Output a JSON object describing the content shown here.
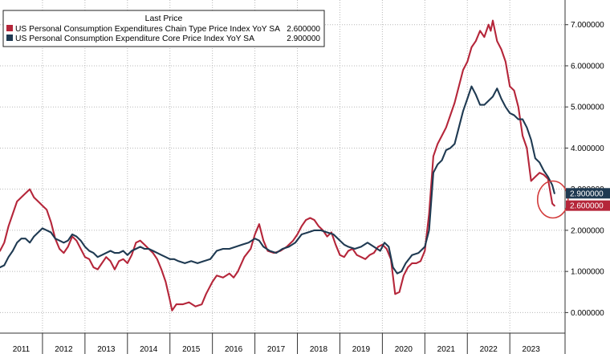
{
  "chart_data": {
    "type": "line",
    "legend": {
      "title": "Last Price",
      "placement": "top-left",
      "entries": [
        {
          "name": "US Personal Consumption Expenditures Chain Type Price Index YoY SA",
          "value": "2.600000"
        },
        {
          "name": "US Personal Consumption Expenditure Core Price Index YoY SA",
          "value": "2.900000"
        }
      ]
    },
    "x_axis": {
      "labels": [
        "2011",
        "2012",
        "2013",
        "2014",
        "2015",
        "2016",
        "2017",
        "2018",
        "2019",
        "2020",
        "2021",
        "2022",
        "2023"
      ],
      "range": [
        2011,
        2024.3
      ]
    },
    "y_axis": {
      "position": "right",
      "range": [
        -0.5,
        7.6
      ],
      "ticks": [
        0,
        1,
        2,
        3,
        4,
        5,
        6,
        7
      ],
      "tick_labels": [
        "0.000000",
        "1.000000",
        "2.000000",
        "3.000000",
        "4.000000",
        "5.000000",
        "6.000000",
        "7.000000"
      ]
    },
    "grid": true,
    "last_value_labels": [
      {
        "series": 1,
        "text": "2.900000",
        "value": 2.9
      },
      {
        "series": 0,
        "text": "2.600000",
        "value": 2.6
      }
    ],
    "annotation": {
      "type": "circle",
      "x": 2024.05,
      "y": 2.75
    },
    "series": [
      {
        "name": "US Personal Consumption Expenditures Chain Type Price Index YoY SA",
        "color": "#b5263a",
        "points": [
          [
            2011.0,
            1.5
          ],
          [
            2011.1,
            1.7
          ],
          [
            2011.2,
            2.1
          ],
          [
            2011.3,
            2.4
          ],
          [
            2011.4,
            2.7
          ],
          [
            2011.5,
            2.8
          ],
          [
            2011.6,
            2.9
          ],
          [
            2011.7,
            3.0
          ],
          [
            2011.8,
            2.8
          ],
          [
            2011.9,
            2.7
          ],
          [
            2012.0,
            2.6
          ],
          [
            2012.1,
            2.5
          ],
          [
            2012.2,
            2.2
          ],
          [
            2012.3,
            1.8
          ],
          [
            2012.4,
            1.55
          ],
          [
            2012.5,
            1.45
          ],
          [
            2012.6,
            1.6
          ],
          [
            2012.7,
            1.85
          ],
          [
            2012.8,
            1.75
          ],
          [
            2012.9,
            1.55
          ],
          [
            2013.0,
            1.35
          ],
          [
            2013.1,
            1.3
          ],
          [
            2013.2,
            1.1
          ],
          [
            2013.3,
            1.05
          ],
          [
            2013.4,
            1.2
          ],
          [
            2013.5,
            1.35
          ],
          [
            2013.6,
            1.25
          ],
          [
            2013.7,
            1.05
          ],
          [
            2013.8,
            1.25
          ],
          [
            2013.9,
            1.3
          ],
          [
            2014.0,
            1.2
          ],
          [
            2014.1,
            1.4
          ],
          [
            2014.2,
            1.7
          ],
          [
            2014.3,
            1.75
          ],
          [
            2014.4,
            1.65
          ],
          [
            2014.5,
            1.55
          ],
          [
            2014.6,
            1.45
          ],
          [
            2014.7,
            1.3
          ],
          [
            2014.8,
            1.05
          ],
          [
            2014.9,
            0.75
          ],
          [
            2015.0,
            0.3
          ],
          [
            2015.05,
            0.05
          ],
          [
            2015.15,
            0.2
          ],
          [
            2015.3,
            0.2
          ],
          [
            2015.45,
            0.25
          ],
          [
            2015.6,
            0.15
          ],
          [
            2015.75,
            0.2
          ],
          [
            2015.85,
            0.45
          ],
          [
            2016.0,
            0.75
          ],
          [
            2016.1,
            0.9
          ],
          [
            2016.25,
            0.85
          ],
          [
            2016.4,
            0.95
          ],
          [
            2016.5,
            0.85
          ],
          [
            2016.6,
            1.0
          ],
          [
            2016.75,
            1.35
          ],
          [
            2016.9,
            1.55
          ],
          [
            2017.0,
            1.9
          ],
          [
            2017.1,
            2.15
          ],
          [
            2017.2,
            1.75
          ],
          [
            2017.3,
            1.5
          ],
          [
            2017.45,
            1.45
          ],
          [
            2017.6,
            1.5
          ],
          [
            2017.75,
            1.6
          ],
          [
            2017.9,
            1.75
          ],
          [
            2018.0,
            1.9
          ],
          [
            2018.1,
            2.1
          ],
          [
            2018.2,
            2.25
          ],
          [
            2018.3,
            2.3
          ],
          [
            2018.4,
            2.25
          ],
          [
            2018.5,
            2.1
          ],
          [
            2018.6,
            2.0
          ],
          [
            2018.7,
            1.85
          ],
          [
            2018.8,
            1.95
          ],
          [
            2018.9,
            1.65
          ],
          [
            2019.0,
            1.4
          ],
          [
            2019.1,
            1.35
          ],
          [
            2019.2,
            1.5
          ],
          [
            2019.3,
            1.55
          ],
          [
            2019.4,
            1.4
          ],
          [
            2019.5,
            1.35
          ],
          [
            2019.6,
            1.3
          ],
          [
            2019.7,
            1.4
          ],
          [
            2019.8,
            1.45
          ],
          [
            2019.9,
            1.6
          ],
          [
            2020.0,
            1.65
          ],
          [
            2020.1,
            1.55
          ],
          [
            2020.2,
            1.3
          ],
          [
            2020.3,
            0.45
          ],
          [
            2020.4,
            0.5
          ],
          [
            2020.5,
            0.9
          ],
          [
            2020.6,
            1.1
          ],
          [
            2020.7,
            1.2
          ],
          [
            2020.8,
            1.2
          ],
          [
            2020.9,
            1.25
          ],
          [
            2021.0,
            1.5
          ],
          [
            2021.1,
            2.4
          ],
          [
            2021.2,
            3.8
          ],
          [
            2021.3,
            4.1
          ],
          [
            2021.4,
            4.3
          ],
          [
            2021.5,
            4.5
          ],
          [
            2021.6,
            4.8
          ],
          [
            2021.7,
            5.1
          ],
          [
            2021.8,
            5.5
          ],
          [
            2021.9,
            5.9
          ],
          [
            2022.0,
            6.1
          ],
          [
            2022.1,
            6.45
          ],
          [
            2022.2,
            6.6
          ],
          [
            2022.3,
            6.85
          ],
          [
            2022.4,
            6.7
          ],
          [
            2022.5,
            7.0
          ],
          [
            2022.55,
            6.85
          ],
          [
            2022.6,
            7.1
          ],
          [
            2022.7,
            6.6
          ],
          [
            2022.8,
            6.4
          ],
          [
            2022.9,
            6.1
          ],
          [
            2023.0,
            5.5
          ],
          [
            2023.1,
            5.4
          ],
          [
            2023.2,
            5.0
          ],
          [
            2023.3,
            4.3
          ],
          [
            2023.4,
            4.0
          ],
          [
            2023.5,
            3.2
          ],
          [
            2023.6,
            3.3
          ],
          [
            2023.7,
            3.4
          ],
          [
            2023.8,
            3.35
          ],
          [
            2023.9,
            3.25
          ],
          [
            2024.0,
            2.65
          ],
          [
            2024.05,
            2.6
          ]
        ]
      },
      {
        "name": "US Personal Consumption Expenditure Core Price Index YoY SA",
        "color": "#1f3a52",
        "points": [
          [
            2011.0,
            1.1
          ],
          [
            2011.1,
            1.15
          ],
          [
            2011.2,
            1.35
          ],
          [
            2011.3,
            1.5
          ],
          [
            2011.4,
            1.7
          ],
          [
            2011.5,
            1.8
          ],
          [
            2011.6,
            1.8
          ],
          [
            2011.7,
            1.7
          ],
          [
            2011.8,
            1.85
          ],
          [
            2011.9,
            1.95
          ],
          [
            2012.0,
            2.05
          ],
          [
            2012.1,
            2.0
          ],
          [
            2012.2,
            1.95
          ],
          [
            2012.3,
            1.8
          ],
          [
            2012.4,
            1.75
          ],
          [
            2012.5,
            1.7
          ],
          [
            2012.6,
            1.75
          ],
          [
            2012.7,
            1.9
          ],
          [
            2012.8,
            1.85
          ],
          [
            2012.9,
            1.75
          ],
          [
            2013.0,
            1.6
          ],
          [
            2013.1,
            1.5
          ],
          [
            2013.2,
            1.45
          ],
          [
            2013.3,
            1.35
          ],
          [
            2013.4,
            1.4
          ],
          [
            2013.5,
            1.45
          ],
          [
            2013.6,
            1.5
          ],
          [
            2013.7,
            1.45
          ],
          [
            2013.8,
            1.45
          ],
          [
            2013.9,
            1.5
          ],
          [
            2014.0,
            1.4
          ],
          [
            2014.1,
            1.5
          ],
          [
            2014.2,
            1.55
          ],
          [
            2014.3,
            1.6
          ],
          [
            2014.4,
            1.55
          ],
          [
            2014.5,
            1.55
          ],
          [
            2014.6,
            1.5
          ],
          [
            2014.7,
            1.45
          ],
          [
            2014.8,
            1.4
          ],
          [
            2014.9,
            1.35
          ],
          [
            2015.0,
            1.3
          ],
          [
            2015.1,
            1.3
          ],
          [
            2015.2,
            1.25
          ],
          [
            2015.35,
            1.2
          ],
          [
            2015.5,
            1.25
          ],
          [
            2015.65,
            1.2
          ],
          [
            2015.8,
            1.25
          ],
          [
            2015.95,
            1.3
          ],
          [
            2016.1,
            1.5
          ],
          [
            2016.25,
            1.55
          ],
          [
            2016.4,
            1.55
          ],
          [
            2016.55,
            1.6
          ],
          [
            2016.7,
            1.65
          ],
          [
            2016.85,
            1.7
          ],
          [
            2017.0,
            1.8
          ],
          [
            2017.1,
            1.75
          ],
          [
            2017.2,
            1.6
          ],
          [
            2017.35,
            1.5
          ],
          [
            2017.5,
            1.45
          ],
          [
            2017.65,
            1.55
          ],
          [
            2017.8,
            1.6
          ],
          [
            2017.95,
            1.7
          ],
          [
            2018.1,
            1.9
          ],
          [
            2018.25,
            1.95
          ],
          [
            2018.4,
            2.0
          ],
          [
            2018.55,
            2.0
          ],
          [
            2018.7,
            1.95
          ],
          [
            2018.85,
            1.9
          ],
          [
            2019.0,
            1.75
          ],
          [
            2019.1,
            1.65
          ],
          [
            2019.2,
            1.6
          ],
          [
            2019.35,
            1.55
          ],
          [
            2019.5,
            1.6
          ],
          [
            2019.65,
            1.7
          ],
          [
            2019.8,
            1.6
          ],
          [
            2019.95,
            1.5
          ],
          [
            2020.05,
            1.7
          ],
          [
            2020.15,
            1.6
          ],
          [
            2020.25,
            1.1
          ],
          [
            2020.35,
            0.95
          ],
          [
            2020.45,
            1.0
          ],
          [
            2020.55,
            1.2
          ],
          [
            2020.7,
            1.4
          ],
          [
            2020.85,
            1.45
          ],
          [
            2021.0,
            1.6
          ],
          [
            2021.1,
            2.0
          ],
          [
            2021.2,
            3.4
          ],
          [
            2021.3,
            3.6
          ],
          [
            2021.4,
            3.7
          ],
          [
            2021.5,
            3.95
          ],
          [
            2021.6,
            4.0
          ],
          [
            2021.7,
            4.1
          ],
          [
            2021.8,
            4.5
          ],
          [
            2021.9,
            4.9
          ],
          [
            2022.0,
            5.2
          ],
          [
            2022.1,
            5.5
          ],
          [
            2022.2,
            5.3
          ],
          [
            2022.3,
            5.05
          ],
          [
            2022.4,
            5.05
          ],
          [
            2022.5,
            5.15
          ],
          [
            2022.6,
            5.25
          ],
          [
            2022.7,
            5.45
          ],
          [
            2022.8,
            5.2
          ],
          [
            2022.9,
            5.0
          ],
          [
            2023.0,
            4.85
          ],
          [
            2023.1,
            4.8
          ],
          [
            2023.2,
            4.7
          ],
          [
            2023.3,
            4.7
          ],
          [
            2023.4,
            4.5
          ],
          [
            2023.5,
            4.2
          ],
          [
            2023.6,
            3.75
          ],
          [
            2023.7,
            3.65
          ],
          [
            2023.8,
            3.45
          ],
          [
            2023.9,
            3.3
          ],
          [
            2024.0,
            3.1
          ],
          [
            2024.05,
            2.9
          ]
        ]
      }
    ]
  }
}
